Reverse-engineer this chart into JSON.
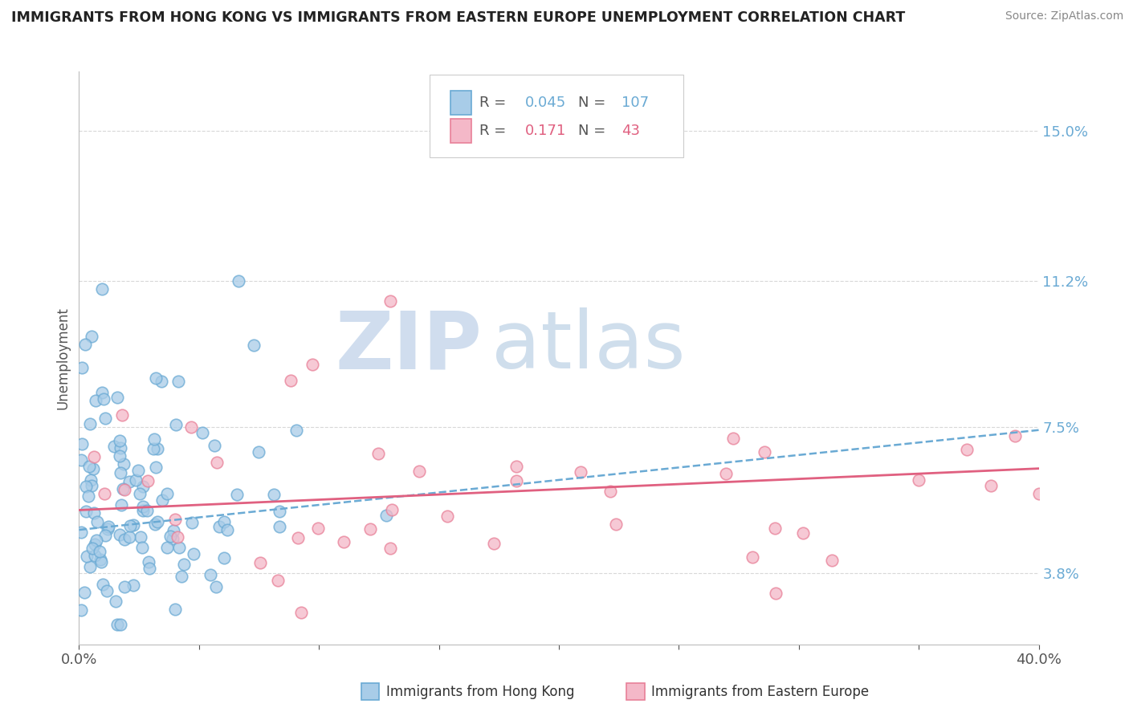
{
  "title": "IMMIGRANTS FROM HONG KONG VS IMMIGRANTS FROM EASTERN EUROPE UNEMPLOYMENT CORRELATION CHART",
  "source": "Source: ZipAtlas.com",
  "ylabel": "Unemployment",
  "xlim": [
    0.0,
    0.4
  ],
  "ylim": [
    0.02,
    0.165
  ],
  "yticks": [
    0.038,
    0.075,
    0.112,
    0.15
  ],
  "ytick_labels": [
    "3.8%",
    "7.5%",
    "11.2%",
    "15.0%"
  ],
  "xticks": [
    0.0,
    0.05,
    0.1,
    0.15,
    0.2,
    0.25,
    0.3,
    0.35,
    0.4
  ],
  "xtick_labels": [
    "0.0%",
    "",
    "",
    "",
    "",
    "",
    "",
    "",
    "40.0%"
  ],
  "color_hk": "#a8cce8",
  "color_hk_edge": "#6aaad4",
  "color_ee": "#f4b8c8",
  "color_ee_edge": "#e88098",
  "color_hk_line": "#6aaad4",
  "color_ee_line": "#e06080",
  "watermark_zip": "ZIP",
  "watermark_atlas": "atlas",
  "watermark_color_zip": "#d0dff0",
  "watermark_color_atlas": "#b8cce0",
  "legend_r1_label": "R = ",
  "legend_r1_val": "0.045",
  "legend_n1_label": "N = ",
  "legend_n1_val": "107",
  "legend_r2_label": "R =  ",
  "legend_r2_val": "0.171",
  "legend_n2_label": "N =  ",
  "legend_n2_val": "43",
  "seed": 12345
}
